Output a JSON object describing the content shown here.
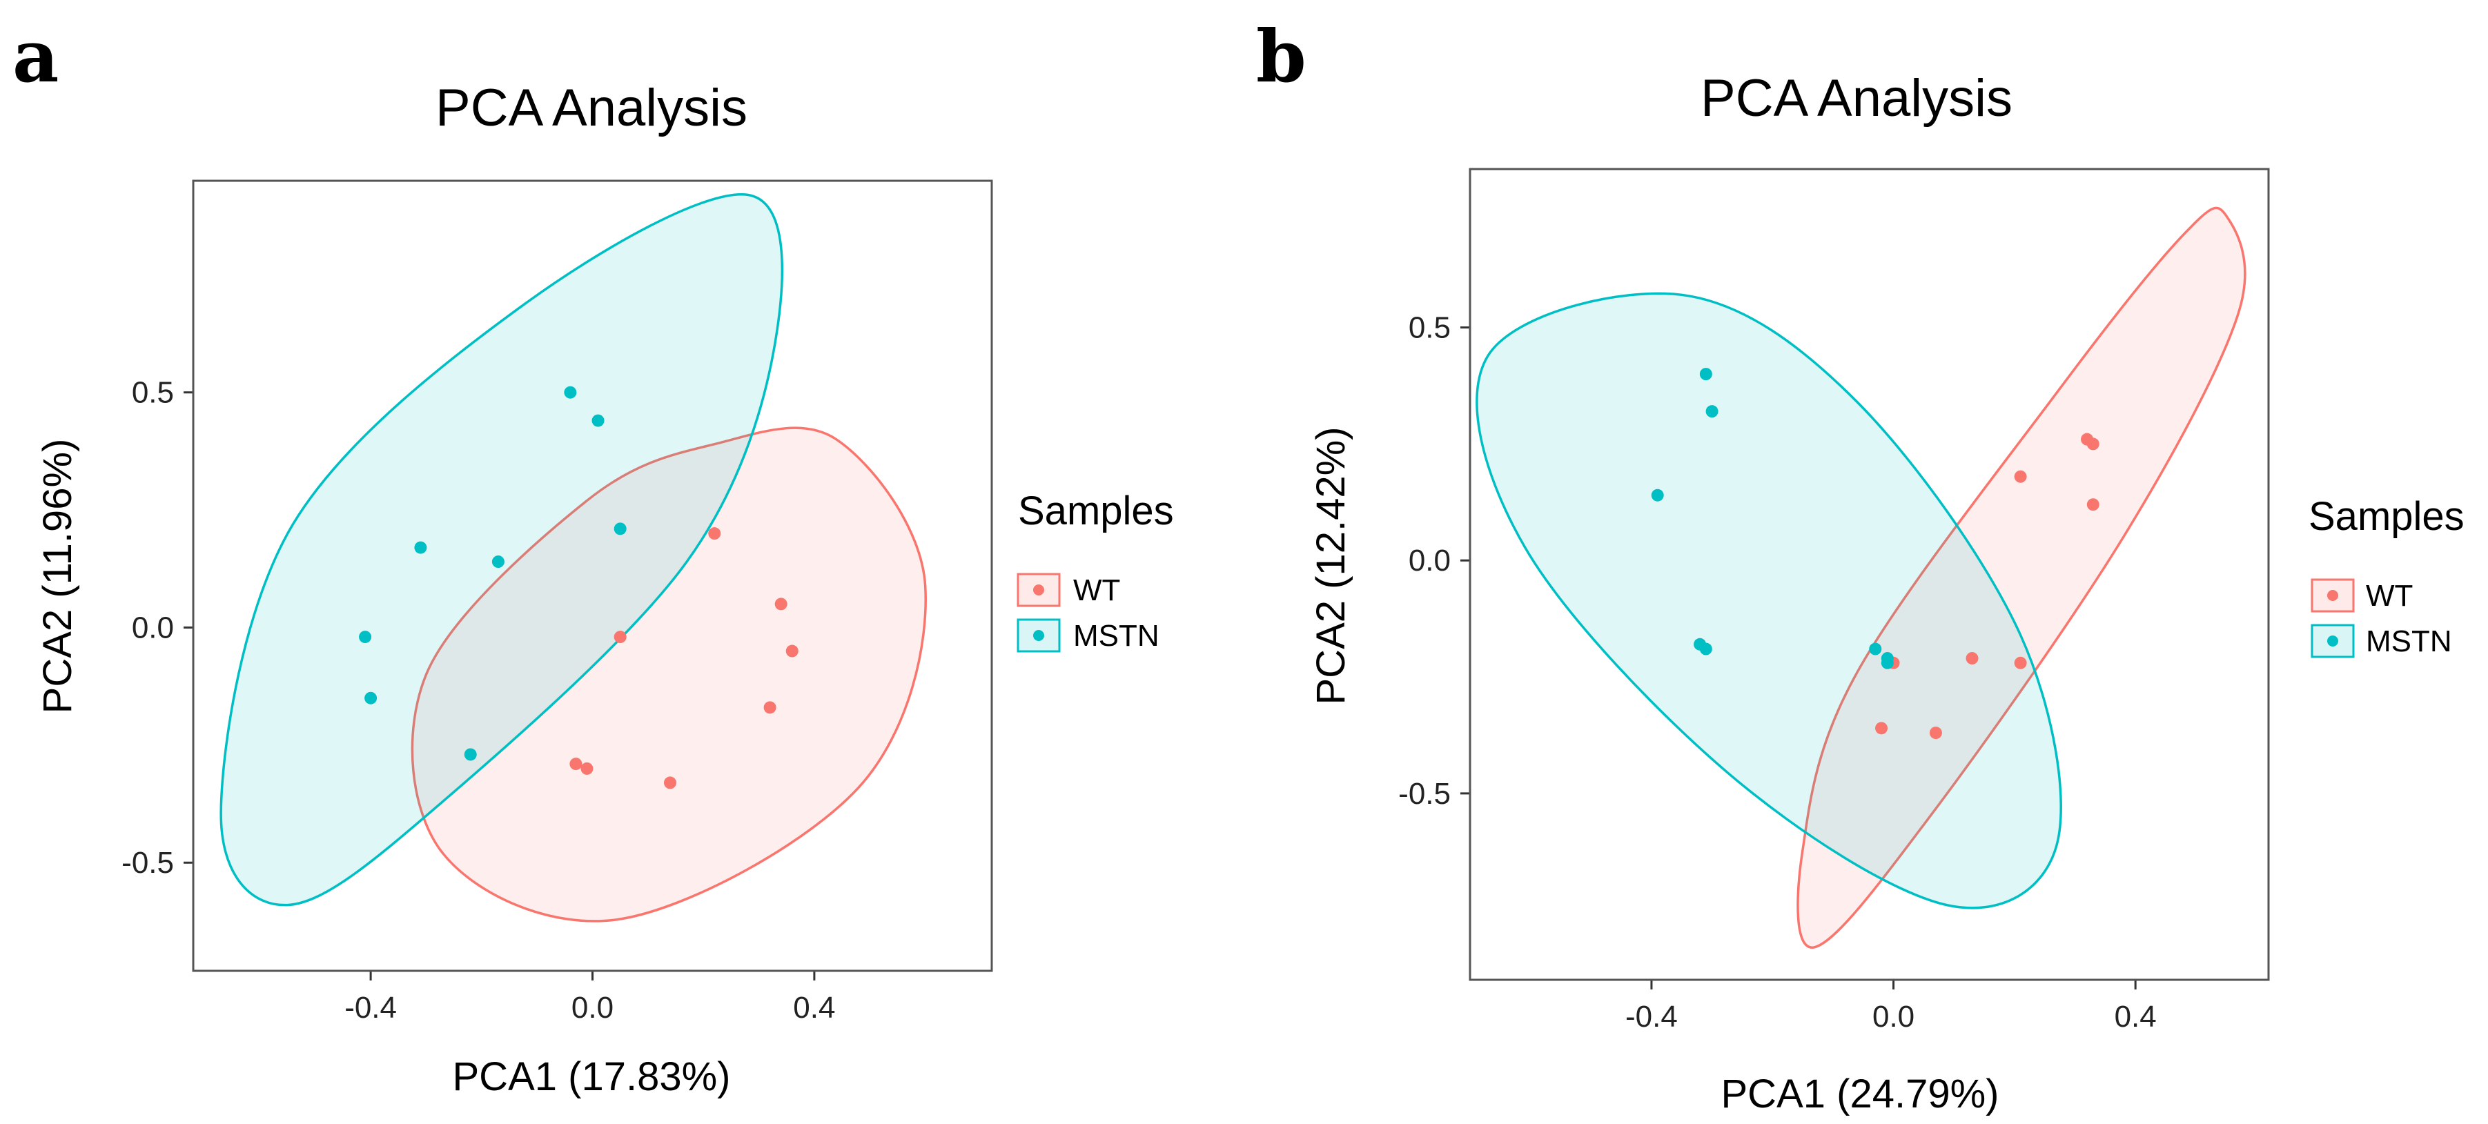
{
  "colors": {
    "WT": "#F8766D",
    "MSTN": "#00BFC4",
    "frame": "#555555"
  },
  "chart_data": [
    {
      "panel": "a",
      "type": "scatter",
      "title": "PCA Analysis",
      "xlabel": "PCA1 (17.83%)",
      "ylabel": "PCA2 (11.96%)",
      "xlim": [
        -0.72,
        0.72
      ],
      "ylim": [
        -0.73,
        0.95
      ],
      "xticks": [
        -0.4,
        0.0,
        0.4
      ],
      "xtick_labels": [
        "-0.4",
        "0.0",
        "0.4"
      ],
      "yticks": [
        -0.5,
        0.0,
        0.5
      ],
      "ytick_labels": [
        "-0.5",
        "0.0",
        "0.5"
      ],
      "legend_title": "Samples",
      "legend": [
        "WT",
        "MSTN"
      ],
      "series": [
        {
          "name": "WT",
          "points": [
            [
              0.22,
              0.2
            ],
            [
              0.05,
              -0.02
            ],
            [
              0.34,
              0.05
            ],
            [
              0.36,
              -0.05
            ],
            [
              0.32,
              -0.17
            ],
            [
              -0.03,
              -0.29
            ],
            [
              -0.01,
              -0.3
            ],
            [
              0.14,
              -0.33
            ]
          ],
          "ellipse": [
            [
              0.44,
              0.4
            ],
            [
              0.6,
              0.09
            ],
            [
              0.48,
              -0.34
            ],
            [
              0.05,
              -0.62
            ],
            [
              -0.27,
              -0.48
            ],
            [
              -0.3,
              -0.1
            ],
            [
              -0.01,
              0.27
            ],
            [
              0.22,
              0.39
            ]
          ]
        },
        {
          "name": "MSTN",
          "points": [
            [
              -0.04,
              0.5
            ],
            [
              0.01,
              0.44
            ],
            [
              0.05,
              0.21
            ],
            [
              -0.31,
              0.17
            ],
            [
              -0.17,
              0.14
            ],
            [
              -0.41,
              -0.02
            ],
            [
              -0.4,
              -0.15
            ],
            [
              -0.22,
              -0.27
            ]
          ],
          "ellipse": [
            [
              0.28,
              0.92
            ],
            [
              0.33,
              0.61
            ],
            [
              0.17,
              0.14
            ],
            [
              -0.27,
              -0.37
            ],
            [
              -0.55,
              -0.59
            ],
            [
              -0.67,
              -0.39
            ],
            [
              -0.54,
              0.22
            ],
            [
              -0.12,
              0.69
            ]
          ]
        }
      ]
    },
    {
      "panel": "b",
      "type": "scatter",
      "title": "PCA Analysis",
      "xlabel": "PCA1 (24.79%)",
      "ylabel": "PCA2 (12.42%)",
      "xlim": [
        -0.7,
        0.62
      ],
      "ylim": [
        -0.9,
        0.84
      ],
      "xticks": [
        -0.4,
        0.0,
        0.4
      ],
      "xtick_labels": [
        "-0.4",
        "0.0",
        "0.4"
      ],
      "yticks": [
        -0.5,
        0.0,
        0.5
      ],
      "ytick_labels": [
        "-0.5",
        "0.0",
        "0.5"
      ],
      "legend_title": "Samples",
      "legend": [
        "WT",
        "MSTN"
      ],
      "series": [
        {
          "name": "WT",
          "points": [
            [
              0.32,
              0.26
            ],
            [
              0.33,
              0.25
            ],
            [
              0.21,
              0.18
            ],
            [
              0.33,
              0.12
            ],
            [
              0.13,
              -0.21
            ],
            [
              0.21,
              -0.22
            ],
            [
              -0.02,
              -0.36
            ],
            [
              0.07,
              -0.37
            ],
            [
              0.0,
              -0.22
            ]
          ],
          "ellipse": [
            [
              0.55,
              0.74
            ],
            [
              0.57,
              0.53
            ],
            [
              0.38,
              0.05
            ],
            [
              0.06,
              -0.55
            ],
            [
              -0.13,
              -0.83
            ],
            [
              -0.15,
              -0.62
            ],
            [
              -0.06,
              -0.24
            ],
            [
              0.27,
              0.36
            ],
            [
              0.48,
              0.7
            ]
          ]
        },
        {
          "name": "MSTN",
          "points": [
            [
              -0.31,
              0.4
            ],
            [
              -0.3,
              0.32
            ],
            [
              -0.39,
              0.14
            ],
            [
              -0.32,
              -0.18
            ],
            [
              -0.31,
              -0.19
            ],
            [
              -0.03,
              -0.19
            ],
            [
              -0.01,
              -0.21
            ],
            [
              -0.01,
              -0.22
            ]
          ],
          "ellipse": [
            [
              -0.35,
              0.57
            ],
            [
              -0.06,
              0.34
            ],
            [
              0.21,
              -0.16
            ],
            [
              0.27,
              -0.61
            ],
            [
              0.09,
              -0.74
            ],
            [
              -0.27,
              -0.46
            ],
            [
              -0.61,
              0.03
            ],
            [
              -0.67,
              0.44
            ]
          ]
        }
      ]
    }
  ]
}
